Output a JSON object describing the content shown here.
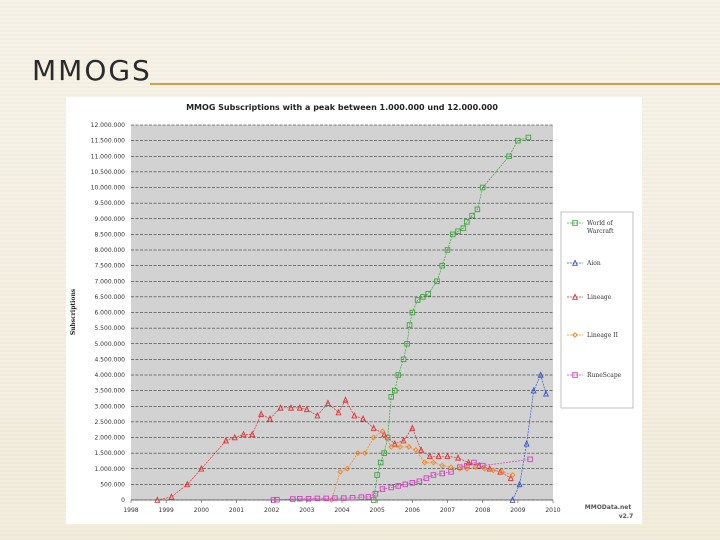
{
  "slide": {
    "title": "MMOGS"
  },
  "chart_data": {
    "type": "line",
    "title": "MMOG Subscriptions with a peak between 1.000.000 und 12.000.000",
    "ylabel": "Subscriptions",
    "xlabel": "",
    "ylim": [
      0,
      12000000
    ],
    "xlim": [
      1998,
      2010
    ],
    "y_ticks": [
      0,
      500000,
      1000000,
      1500000,
      2000000,
      2500000,
      3000000,
      3500000,
      4000000,
      4500000,
      5000000,
      5500000,
      6000000,
      6500000,
      7000000,
      7500000,
      8000000,
      8500000,
      9000000,
      9500000,
      10000000,
      10500000,
      11000000,
      11500000,
      12000000
    ],
    "y_tick_labels": [
      "0",
      "500.000",
      "1.000.000",
      "1.500.000",
      "2.000.000",
      "2.500.000",
      "3.000.000",
      "3.500.000",
      "4.000.000",
      "4.500.000",
      "5.000.000",
      "5.500.000",
      "6.000.000",
      "6.500.000",
      "7.000.000",
      "7.500.000",
      "8.000.000",
      "8.500.000",
      "9.000.000",
      "9.500.000",
      "10.000.000",
      "10.500.000",
      "11.000.000",
      "11.500.000",
      "12.000.000"
    ],
    "x_tick_labels": [
      "1998",
      "1999",
      "2000",
      "2001",
      "2002",
      "2003",
      "2004",
      "2005",
      "2006",
      "2007",
      "2008",
      "2009",
      "2010"
    ],
    "grid": true,
    "legend_position": "right",
    "watermark": [
      "MMOData.net",
      "v2.7"
    ],
    "series": [
      {
        "name": "World of Warcraft",
        "color": "#3aa63a",
        "marker": "square",
        "points": [
          [
            2004.9,
            0
          ],
          [
            2005.0,
            800000
          ],
          [
            2005.1,
            1200000
          ],
          [
            2005.2,
            1500000
          ],
          [
            2005.3,
            2000000
          ],
          [
            2005.4,
            3300000
          ],
          [
            2005.5,
            3500000
          ],
          [
            2005.6,
            4000000
          ],
          [
            2005.75,
            4500000
          ],
          [
            2005.85,
            5000000
          ],
          [
            2005.92,
            5600000
          ],
          [
            2006.0,
            6000000
          ],
          [
            2006.15,
            6400000
          ],
          [
            2006.3,
            6500000
          ],
          [
            2006.45,
            6600000
          ],
          [
            2006.7,
            7000000
          ],
          [
            2006.85,
            7500000
          ],
          [
            2007.0,
            8000000
          ],
          [
            2007.15,
            8500000
          ],
          [
            2007.3,
            8600000
          ],
          [
            2007.45,
            8700000
          ],
          [
            2007.55,
            8900000
          ],
          [
            2007.7,
            9100000
          ],
          [
            2007.85,
            9300000
          ],
          [
            2008.0,
            10000000
          ],
          [
            2008.75,
            11000000
          ],
          [
            2009.0,
            11500000
          ],
          [
            2009.3,
            11600000
          ]
        ]
      },
      {
        "name": "Aion",
        "color": "#3355cc",
        "marker": "triangle",
        "points": [
          [
            2008.85,
            0
          ],
          [
            2009.05,
            500000
          ],
          [
            2009.25,
            1800000
          ],
          [
            2009.45,
            3500000
          ],
          [
            2009.65,
            4000000
          ],
          [
            2009.8,
            3400000
          ]
        ]
      },
      {
        "name": "Lineage",
        "color": "#dd3333",
        "marker": "triangle",
        "points": [
          [
            1998.75,
            0
          ],
          [
            1999.15,
            100000
          ],
          [
            1999.6,
            500000
          ],
          [
            2000.0,
            1000000
          ],
          [
            2000.7,
            1900000
          ],
          [
            2000.95,
            2000000
          ],
          [
            2001.2,
            2100000
          ],
          [
            2001.45,
            2100000
          ],
          [
            2001.7,
            2750000
          ],
          [
            2001.95,
            2600000
          ],
          [
            2002.25,
            2950000
          ],
          [
            2002.55,
            2950000
          ],
          [
            2002.8,
            2950000
          ],
          [
            2003.0,
            2900000
          ],
          [
            2003.3,
            2700000
          ],
          [
            2003.6,
            3100000
          ],
          [
            2003.9,
            2800000
          ],
          [
            2004.1,
            3200000
          ],
          [
            2004.35,
            2700000
          ],
          [
            2004.6,
            2600000
          ],
          [
            2004.9,
            2300000
          ],
          [
            2005.2,
            2100000
          ],
          [
            2005.5,
            1800000
          ],
          [
            2005.75,
            1900000
          ],
          [
            2006.0,
            2300000
          ],
          [
            2006.25,
            1600000
          ],
          [
            2006.5,
            1400000
          ],
          [
            2006.75,
            1400000
          ],
          [
            2007.0,
            1400000
          ],
          [
            2007.3,
            1350000
          ],
          [
            2007.6,
            1200000
          ],
          [
            2007.9,
            1100000
          ],
          [
            2008.2,
            1000000
          ],
          [
            2008.5,
            900000
          ],
          [
            2008.8,
            700000
          ]
        ]
      },
      {
        "name": "Lineage II",
        "color": "#ee8822",
        "marker": "diamond",
        "points": [
          [
            2003.7,
            0
          ],
          [
            2003.95,
            900000
          ],
          [
            2004.15,
            1000000
          ],
          [
            2004.45,
            1500000
          ],
          [
            2004.65,
            1500000
          ],
          [
            2004.9,
            2000000
          ],
          [
            2005.15,
            2200000
          ],
          [
            2005.4,
            1700000
          ],
          [
            2005.65,
            1700000
          ],
          [
            2005.9,
            1700000
          ],
          [
            2006.1,
            1600000
          ],
          [
            2006.35,
            1200000
          ],
          [
            2006.6,
            1200000
          ],
          [
            2006.85,
            1100000
          ],
          [
            2007.1,
            1050000
          ],
          [
            2007.35,
            1000000
          ],
          [
            2007.55,
            1000000
          ],
          [
            2007.8,
            1050000
          ],
          [
            2008.05,
            1000000
          ],
          [
            2008.3,
            950000
          ],
          [
            2008.55,
            900000
          ],
          [
            2008.85,
            800000
          ]
        ]
      },
      {
        "name": "RuneScape",
        "color": "#cc44bb",
        "marker": "square",
        "points": [
          [
            2002.05,
            0
          ],
          [
            2002.15,
            10000
          ],
          [
            2002.6,
            30000
          ],
          [
            2002.8,
            40000
          ],
          [
            2003.05,
            40000
          ],
          [
            2003.3,
            50000
          ],
          [
            2003.55,
            50000
          ],
          [
            2003.8,
            60000
          ],
          [
            2004.05,
            60000
          ],
          [
            2004.3,
            70000
          ],
          [
            2004.55,
            90000
          ],
          [
            2004.75,
            100000
          ],
          [
            2004.95,
            200000
          ],
          [
            2005.15,
            350000
          ],
          [
            2005.4,
            400000
          ],
          [
            2005.6,
            450000
          ],
          [
            2005.8,
            500000
          ],
          [
            2006.0,
            550000
          ],
          [
            2006.2,
            600000
          ],
          [
            2006.4,
            700000
          ],
          [
            2006.6,
            800000
          ],
          [
            2006.85,
            850000
          ],
          [
            2007.1,
            900000
          ],
          [
            2007.35,
            1050000
          ],
          [
            2007.55,
            1100000
          ],
          [
            2007.75,
            1200000
          ],
          [
            2008.0,
            1100000
          ],
          [
            2009.35,
            1300000
          ]
        ]
      }
    ]
  }
}
